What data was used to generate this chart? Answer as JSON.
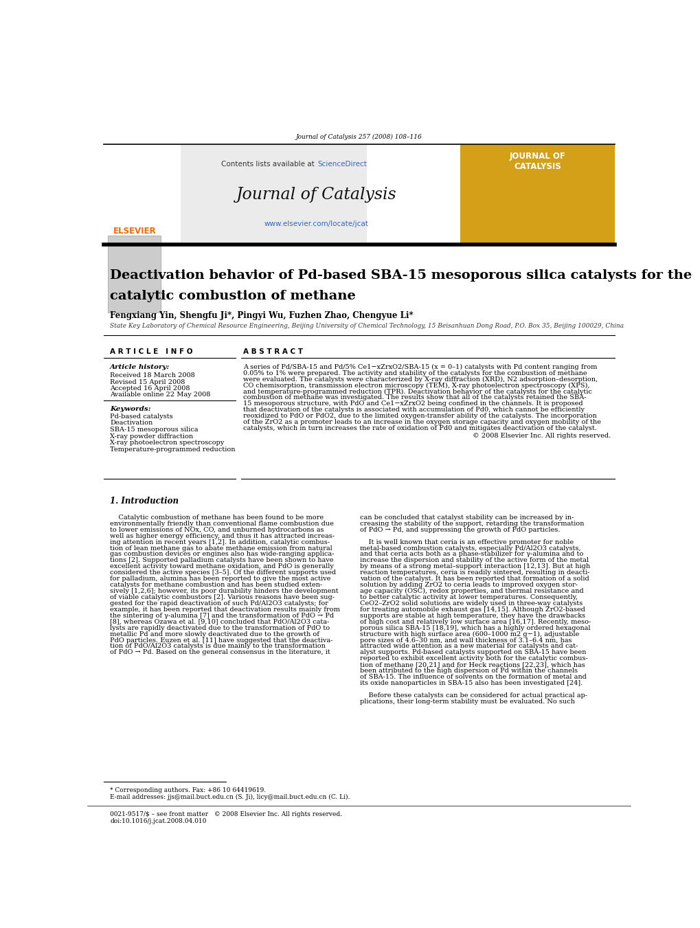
{
  "page_width": 10.2,
  "page_height": 13.51,
  "background_color": "#ffffff",
  "top_journal_ref": "Journal of Catalysis 257 (2008) 108–116",
  "header_bg": "#e8e8e8",
  "header_contents_text": "Contents lists available at ",
  "header_sciencedirect": "ScienceDirect",
  "header_journal_title": "Journal of Catalysis",
  "header_url": "www.elsevier.com/locate/jcat",
  "sciencedirect_color": "#3366cc",
  "url_color": "#3366cc",
  "elsevier_color": "#FF6600",
  "journal_box_color": "#D4A017",
  "article_title_line1": "Deactivation behavior of Pd-based SBA-15 mesoporous silica catalysts for the",
  "article_title_line2": "catalytic combustion of methane",
  "authors": "Fengxiang Yin, Shengfu Ji*, Pingyi Wu, Fuzhen Zhao, Chengyue Li*",
  "affiliation": "State Key Laboratory of Chemical Resource Engineering, Beijing University of Chemical Technology, 15 Beisanhuan Dong Road, P.O. Box 35, Beijing 100029, China",
  "article_info_header": "A R T I C L E   I N F O",
  "abstract_header": "A B S T R A C T",
  "article_history_label": "Article history:",
  "received": "Received 18 March 2008",
  "revised": "Revised 15 April 2008",
  "accepted": "Accepted 16 April 2008",
  "available": "Available online 22 May 2008",
  "keywords_label": "Keywords:",
  "keywords": [
    "Pd-based catalysts",
    "Deactivation",
    "SBA-15 mesoporous silica",
    "X-ray powder diffraction",
    "X-ray photoelectron spectroscopy",
    "Temperature-programmed reduction"
  ],
  "abstract_copyright": "© 2008 Elsevier Inc. All rights reserved.",
  "intro_header": "1. Introduction",
  "footnote_text": "* Corresponding authors. Fax: +86 10 64419619.",
  "footnote_email": "E-mail addresses: jjs@mail.buct.edu.cn (S. Ji), licy@mail.buct.edu.cn (C. Li).",
  "footnote_issn": "0021-9517/$ – see front matter   © 2008 Elsevier Inc. All rights reserved.",
  "footnote_doi": "doi:10.1016/j.jcat.2008.04.010",
  "abstract_lines": [
    "A series of Pd/SBA-15 and Pd/5% Ce1−xZrxO2/SBA-15 (x = 0–1) catalysts with Pd content ranging from",
    "0.05% to 1% were prepared. The activity and stability of the catalysts for the combustion of methane",
    "were evaluated. The catalysts were characterized by X-ray diffraction (XRD), N2 adsorption–desorption,",
    "CO chemisorption, transmission electron microscopy (TEM), X-ray photoelectron spectroscopy (XPS),",
    "and temperature-programmed reduction (TPR). Deactivation behavior of the catalysts for the catalytic",
    "combustion of methane was investigated. The results show that all of the catalysts retained the SBA-",
    "15 mesoporous structure, with PdO and Ce1−xZrxO2 being confined in the channels. It is proposed",
    "that deactivation of the catalysts is associated with accumulation of Pd0, which cannot be efficiently",
    "reoxidized to PdO or PdO2, due to the limited oxygen-transfer ability of the catalysts. The incorporation",
    "of the ZrO2 as a promoter leads to an increase in the oxygen storage capacity and oxygen mobility of the",
    "catalysts, which in turn increases the rate of oxidation of Pd0 and mitigates deactivation of the catalyst."
  ],
  "intro_col1_lines": [
    "    Catalytic combustion of methane has been found to be more",
    "environmentally friendly than conventional flame combustion due",
    "to lower emissions of NOx, CO, and unburned hydrocarbons as",
    "well as higher energy efficiency, and thus it has attracted increas-",
    "ing attention in recent years [1,2]. In addition, catalytic combus-",
    "tion of lean methane gas to abate methane emission from natural",
    "gas combustion devices or engines also has wide-ranging applica-",
    "tions [2]. Supported palladium catalysts have been shown to have",
    "excellent activity toward methane oxidation, and PdO is generally",
    "considered the active species [3–5]. Of the different supports used",
    "for palladium, alumina has been reported to give the most active",
    "catalysts for methane combustion and has been studied exten-",
    "sively [1,2,6]; however, its poor durability hinders the development",
    "of viable catalytic combustors [2]. Various reasons have been sug-",
    "gested for the rapid deactivation of such Pd/Al2O3 catalysts; for",
    "example, it has been reported that deactivation results mainly from",
    "the sintering of γ-alumina [7] and the transformation of PdO → Pd",
    "[8], whereas Ozawa et al. [9,10] concluded that PdO/Al2O3 cata-",
    "lysts are rapidly deactivated due to the transformation of PdO to",
    "metallic Pd and more slowly deactivated due to the growth of",
    "PdO particles. Euzen et al. [11] have suggested that the deactiva-",
    "tion of PdO/Al2O3 catalysts is due mainly to the transformation",
    "of PdO → Pd. Based on the general consensus in the literature, it"
  ],
  "intro_col2_lines": [
    "can be concluded that catalyst stability can be increased by in-",
    "creasing the stability of the support, retarding the transformation",
    "of PdO → Pd, and suppressing the growth of PdO particles.",
    "",
    "    It is well known that ceria is an effective promoter for noble",
    "metal-based combustion catalysts, especially Pd/Al2O3 catalysts,",
    "and that ceria acts both as a phase-stabilizer for γ-alumina and to",
    "increase the dispersion and stability of the active form of the metal",
    "by means of a strong metal–support interaction [12,13]. But at high",
    "reaction temperatures, ceria is readily sintered, resulting in deacti-",
    "vation of the catalyst. It has been reported that formation of a solid",
    "solution by adding ZrO2 to ceria leads to improved oxygen stor-",
    "age capacity (OSC), redox properties, and thermal resistance and",
    "to better catalytic activity at lower temperatures. Consequently,",
    "CeO2–ZrO2 solid solutions are widely used in three-way catalysts",
    "for treating automobile exhaust gas [14,15]. Although ZrO2-based",
    "supports are stable at high temperature, they have the drawbacks",
    "of high cost and relatively low surface area [16,17]. Recently, meso-",
    "porous silica SBA-15 [18,19], which has a highly ordered hexagonal",
    "structure with high surface area (600–1000 m2 g−1), adjustable",
    "pore sizes of 4.6–30 nm, and wall thickness of 3.1–6.4 nm, has",
    "attracted wide attention as a new material for catalysts and cat-",
    "alyst supports. Pd-based catalysts supported on SBA-15 have been",
    "reported to exhibit excellent activity both for the catalytic combus-",
    "tion of methane [20,21] and for Heck reactions [22,23], which has",
    "been attributed to the high dispersion of Pd within the channels",
    "of SBA-15. The influence of solvents on the formation of metal and",
    "its oxide nanoparticles in SBA-15 also has been investigated [24].",
    "",
    "    Before these catalysts can be considered for actual practical ap-",
    "plications, their long-term stability must be evaluated. No such"
  ]
}
